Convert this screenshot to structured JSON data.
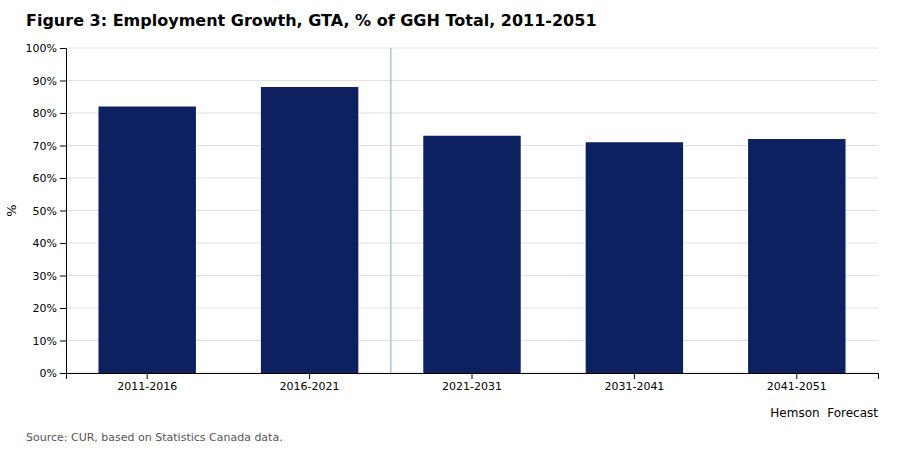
{
  "chart_data": {
    "type": "bar",
    "title": "Figure 3: Employment Growth, GTA, % of GGH Total, 2011-2051",
    "y_label": "%",
    "categories": [
      "2011-2016",
      "2016-2021",
      "2021-2031",
      "2031-2041",
      "2041-2051"
    ],
    "values": [
      0.82,
      0.88,
      0.73,
      0.71,
      0.72
    ],
    "color": "#0d2060",
    "ylim": [
      0,
      1.0
    ],
    "yticks": [
      {
        "value": 0.0,
        "label": "0%"
      },
      {
        "value": 0.1,
        "label": "10%"
      },
      {
        "value": 0.2,
        "label": "20%"
      },
      {
        "value": 0.3,
        "label": "30%"
      },
      {
        "value": 0.4,
        "label": "40%"
      },
      {
        "value": 0.5,
        "label": "50%"
      },
      {
        "value": 0.6,
        "label": "60%"
      },
      {
        "value": 0.7,
        "label": "70%"
      },
      {
        "value": 0.8,
        "label": "80%"
      },
      {
        "value": 0.9,
        "label": "90%"
      },
      {
        "value": 1.0,
        "label": "100%"
      }
    ],
    "grid": true,
    "annotations": [
      {
        "text": "Hemson  Forecast"
      },
      {
        "text": "Source: CUR, based on Statistics Canada data."
      },
      {
        "type": "divider",
        "after": "2016-2021",
        "color": "#aac4e0"
      }
    ]
  }
}
